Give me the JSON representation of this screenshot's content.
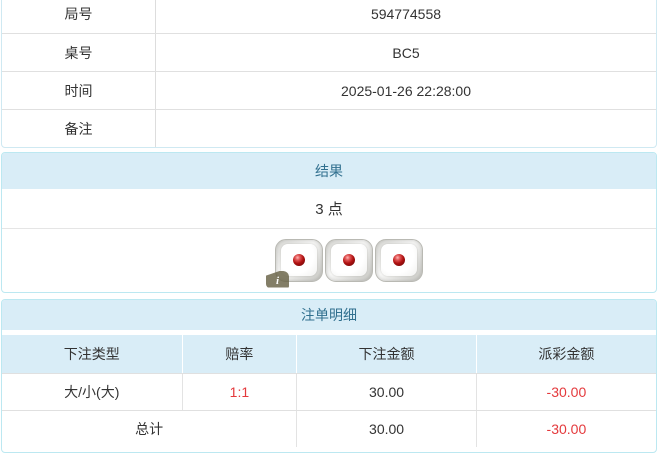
{
  "info_table": {
    "rows": [
      {
        "label": "局号",
        "value": "594774558"
      },
      {
        "label": "桌号",
        "value": "BC5"
      },
      {
        "label": "时间",
        "value": "2025-01-26 22:28:00"
      },
      {
        "label": "备注",
        "value": ""
      }
    ]
  },
  "result_section": {
    "title": "结果",
    "points": "3 点",
    "dice_values": [
      1,
      1,
      1
    ],
    "info_badge_label": "i"
  },
  "bets_section": {
    "title": "注单明细",
    "columns": [
      "下注类型",
      "赔率",
      "下注金额",
      "派彩金额"
    ],
    "rows": [
      {
        "type": "大/小(大)",
        "odds": "1:1",
        "bet": "30.00",
        "payout": "-30.00"
      }
    ],
    "total": {
      "label": "总计",
      "bet": "30.00",
      "payout": "-30.00"
    }
  },
  "colors": {
    "section_header_bg": "#d9edf7",
    "section_header_text": "#31708f",
    "card_border": "#bce8f1",
    "row_divider": "#e0e0e0",
    "negative_red": "#e4393c",
    "body_text": "#333333"
  }
}
